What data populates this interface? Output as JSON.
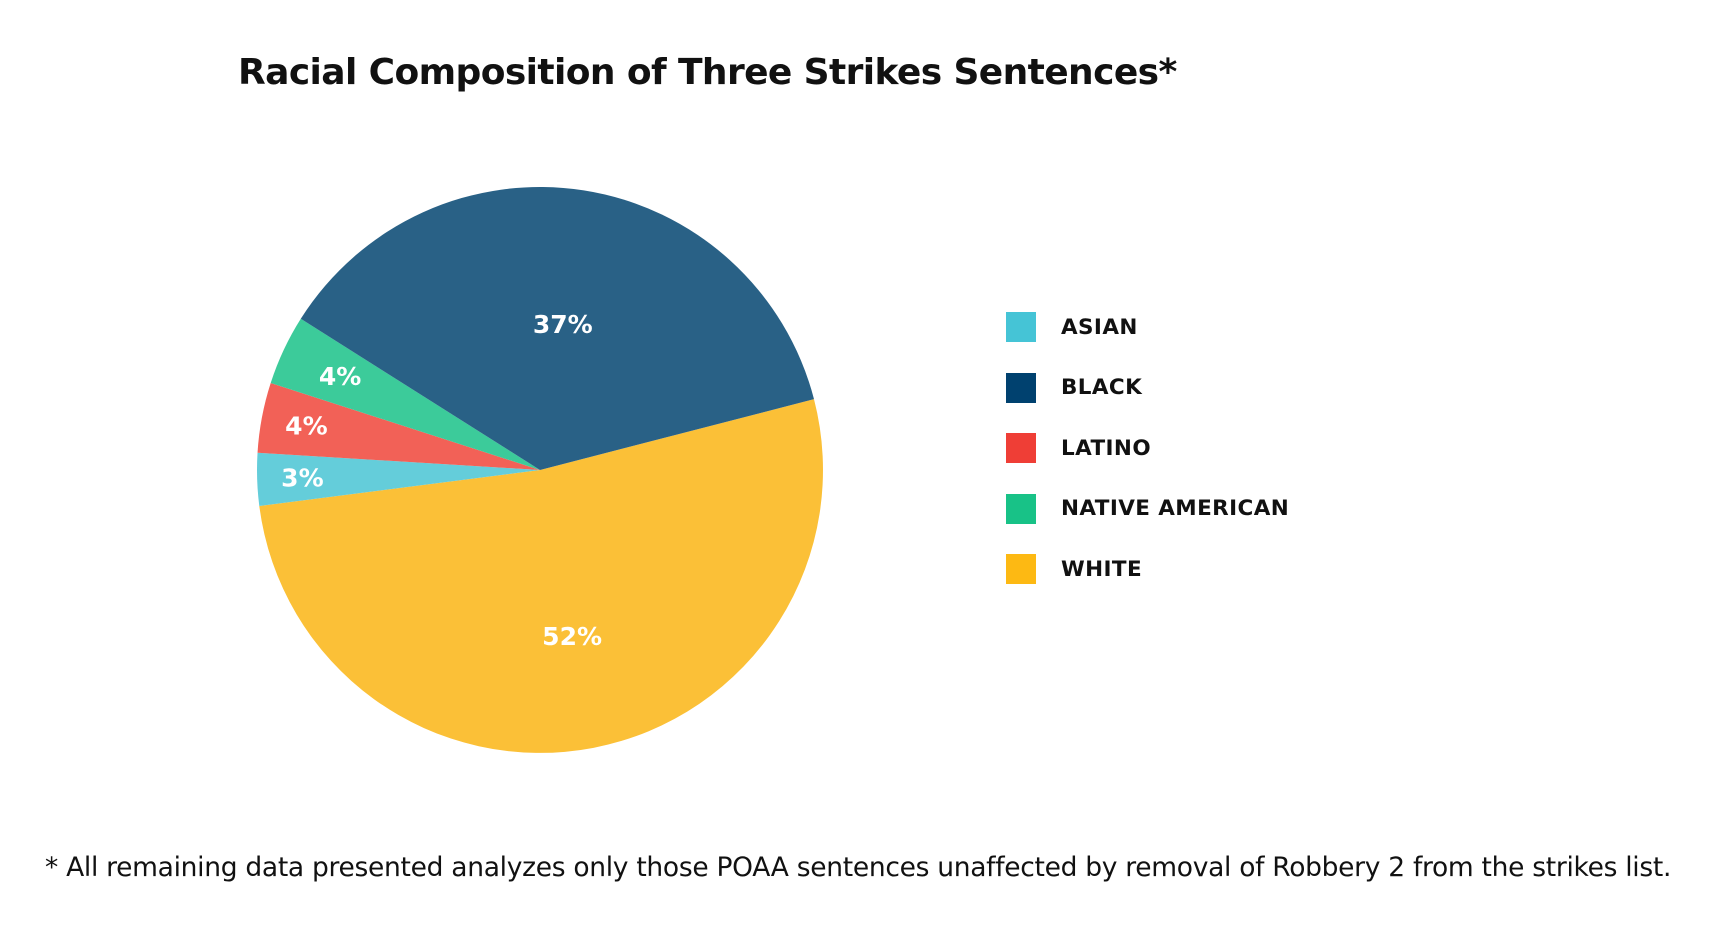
{
  "chart_data": {
    "type": "pie",
    "title": "Racial Composition of Three Strikes Sentences*",
    "slices": [
      {
        "name": "WHITE",
        "value": 52,
        "label": "52%",
        "color": "#FBC037",
        "label_color": "#ffffff"
      },
      {
        "name": "ASIAN",
        "value": 3,
        "label": "3%",
        "color": "#64CDDA",
        "label_color": "#ffffff"
      },
      {
        "name": "LATINO",
        "value": 4,
        "label": "4%",
        "color": "#F26157",
        "label_color": "#ffffff"
      },
      {
        "name": "NATIVE AMERICAN",
        "value": 4,
        "label": "4%",
        "color": "#3CCB9A",
        "label_color": "#ffffff"
      },
      {
        "name": "BLACK",
        "value": 37,
        "label": "37%",
        "color": "#296186",
        "label_color": "#ffffff"
      }
    ],
    "legend": {
      "placement": "right",
      "items": [
        {
          "name": "ASIAN",
          "color": "#45C4D6"
        },
        {
          "name": "BLACK",
          "color": "#00416F"
        },
        {
          "name": "LATINO",
          "color": "#EF3E36"
        },
        {
          "name": "NATIVE AMERICAN",
          "color": "#18C287"
        },
        {
          "name": "WHITE",
          "color": "#FDB913"
        }
      ]
    }
  },
  "footnote": "* All remaining data presented analyzes only those POAA sentences unaffected by removal of Robbery 2 from the strikes list."
}
